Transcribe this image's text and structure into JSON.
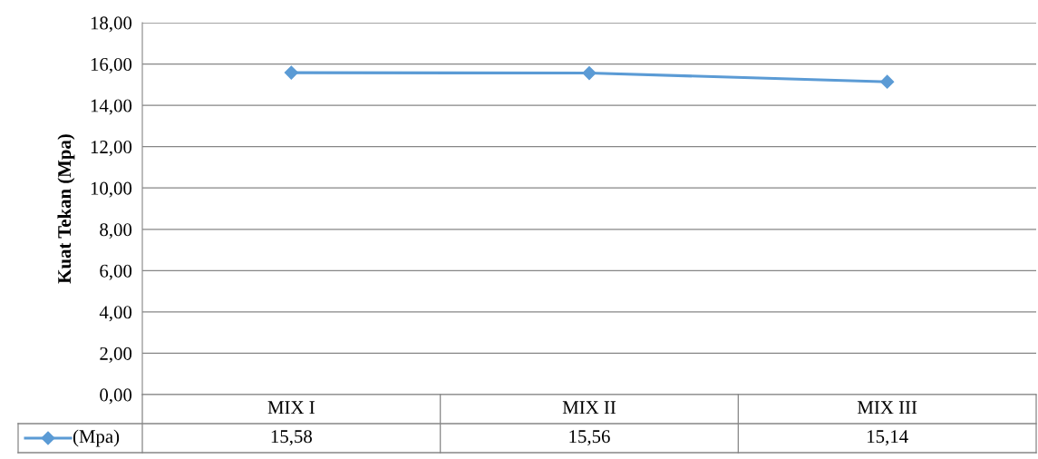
{
  "chart_data": {
    "type": "line",
    "ylabel": "Kuat Tekan (Mpa)",
    "categories": [
      "MIX I",
      "MIX II",
      "MIX III"
    ],
    "series": [
      {
        "name": "(Mpa)",
        "color": "#5b9bd5",
        "values": [
          15.58,
          15.56,
          15.14
        ]
      }
    ],
    "ylim": [
      0,
      18
    ],
    "yticks": [
      {
        "value": 0,
        "label": "0,00"
      },
      {
        "value": 2,
        "label": "2,00"
      },
      {
        "value": 4,
        "label": "4,00"
      },
      {
        "value": 6,
        "label": "6,00"
      },
      {
        "value": 8,
        "label": "8,00"
      },
      {
        "value": 10,
        "label": "10,00"
      },
      {
        "value": 12,
        "label": "12,00"
      },
      {
        "value": 14,
        "label": "14,00"
      },
      {
        "value": 16,
        "label": "16,00"
      },
      {
        "value": 18,
        "label": "18,00"
      }
    ],
    "value_labels": [
      "15,58",
      "15,56",
      "15,14"
    ],
    "grid": "y",
    "marker": "diamond",
    "line_style": "solid"
  }
}
